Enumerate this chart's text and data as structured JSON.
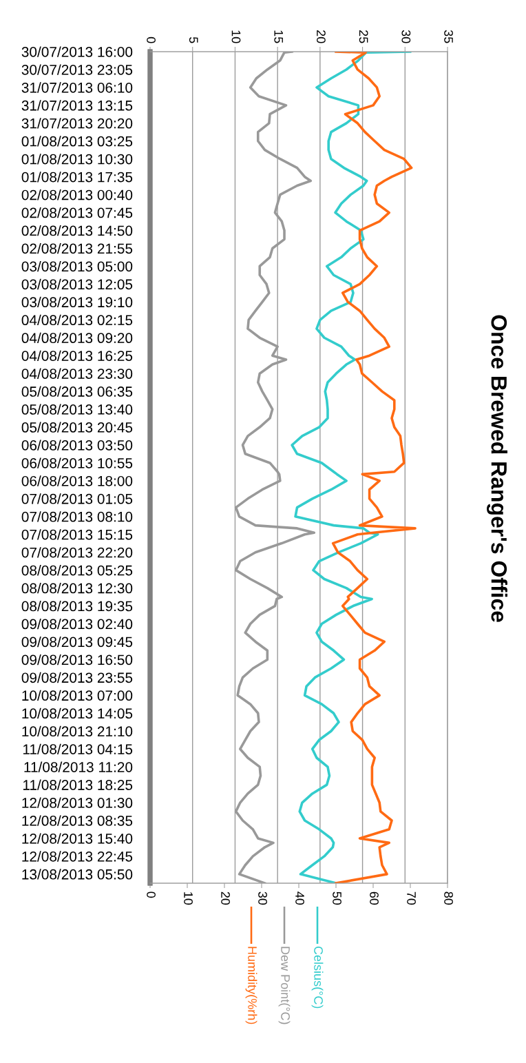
{
  "chart_data": {
    "type": "line",
    "orientation": "horizontal",
    "title": "Once Brewed Ranger's Office",
    "x": [
      "2013-07-30T16:00",
      "2013-07-30T16:20",
      "2013-07-30T19:30",
      "2013-07-30T23:05",
      "2013-07-31T02:35",
      "2013-07-31T06:10",
      "2013-07-31T09:40",
      "2013-07-31T13:15",
      "2013-07-31T16:45",
      "2013-07-31T20:20",
      "2013-07-31T23:50",
      "2013-08-01T03:25",
      "2013-08-01T06:55",
      "2013-08-01T10:30",
      "2013-08-01T14:00",
      "2013-08-01T17:35",
      "2013-08-01T19:10",
      "2013-08-01T21:05",
      "2013-08-02T00:40",
      "2013-08-02T04:10",
      "2013-08-02T07:45",
      "2013-08-02T11:15",
      "2013-08-02T14:50",
      "2013-08-02T18:20",
      "2013-08-02T21:55",
      "2013-08-03T01:25",
      "2013-08-03T05:00",
      "2013-08-03T08:30",
      "2013-08-03T12:05",
      "2013-08-03T15:35",
      "2013-08-03T19:10",
      "2013-08-03T22:40",
      "2013-08-04T02:15",
      "2013-08-04T05:45",
      "2013-08-04T09:20",
      "2013-08-04T12:50",
      "2013-08-04T16:25",
      "2013-08-04T18:00",
      "2013-08-04T19:55",
      "2013-08-04T23:30",
      "2013-08-05T03:00",
      "2013-08-05T06:35",
      "2013-08-05T10:05",
      "2013-08-05T13:40",
      "2013-08-05T17:10",
      "2013-08-05T20:45",
      "2013-08-06T00:15",
      "2013-08-06T03:50",
      "2013-08-06T07:20",
      "2013-08-06T10:55",
      "2013-08-06T14:25",
      "2013-08-06T15:25",
      "2013-08-06T18:00",
      "2013-08-06T21:30",
      "2013-08-07T01:05",
      "2013-08-07T04:35",
      "2013-08-07T08:10",
      "2013-08-07T11:40",
      "2013-08-07T12:50",
      "2013-08-07T14:35",
      "2013-08-07T15:15",
      "2013-08-07T18:45",
      "2013-08-07T22:20",
      "2013-08-08T01:50",
      "2013-08-08T05:25",
      "2013-08-08T08:55",
      "2013-08-08T12:30",
      "2013-08-08T16:00",
      "2013-08-08T16:50",
      "2013-08-08T19:35",
      "2013-08-08T23:05",
      "2013-08-09T02:40",
      "2013-08-09T06:10",
      "2013-08-09T09:45",
      "2013-08-09T13:15",
      "2013-08-09T16:50",
      "2013-08-09T20:20",
      "2013-08-09T23:55",
      "2013-08-10T03:25",
      "2013-08-10T07:00",
      "2013-08-10T10:30",
      "2013-08-10T14:05",
      "2013-08-10T17:35",
      "2013-08-10T21:10",
      "2013-08-11T00:40",
      "2013-08-11T04:15",
      "2013-08-11T07:45",
      "2013-08-11T11:20",
      "2013-08-11T14:50",
      "2013-08-11T18:25",
      "2013-08-11T21:55",
      "2013-08-12T01:30",
      "2013-08-12T05:00",
      "2013-08-12T08:35",
      "2013-08-12T12:05",
      "2013-08-12T15:40",
      "2013-08-12T17:25",
      "2013-08-12T19:10",
      "2013-08-12T22:45",
      "2013-08-13T02:15",
      "2013-08-13T05:50",
      "2013-08-13T09:25"
    ],
    "series": [
      {
        "name": "Celsius(°C)",
        "color": "#33cccc",
        "values": [
          30.6,
          25.4,
          24.5,
          23.1,
          21.3,
          19.6,
          21,
          24.5,
          24.5,
          23.1,
          21.3,
          21,
          21,
          21.3,
          22.8,
          24.8,
          25.5,
          25.1,
          23.6,
          22.5,
          21.8,
          23.1,
          24.8,
          25.1,
          23.6,
          22.5,
          20.8,
          21.6,
          23.6,
          23.9,
          23.6,
          21.3,
          20,
          19.6,
          20.5,
          22.5,
          23.4,
          24.1,
          23.1,
          21.9,
          20.9,
          20.6,
          20.8,
          20.9,
          20.9,
          19.9,
          17.9,
          16.7,
          17.3,
          20.2,
          21.6,
          22,
          23.1,
          21.3,
          19.1,
          17.3,
          17.1,
          21.6,
          25.1,
          25.8,
          26.8,
          24.8,
          22.2,
          19.9,
          19.2,
          20.5,
          23.1,
          24.8,
          26.1,
          23.9,
          21.9,
          20.2,
          19.6,
          20.2,
          21.6,
          22.8,
          21.3,
          19.4,
          18.4,
          18.2,
          20.2,
          21.6,
          22.2,
          21.3,
          19.9,
          19.1,
          19.6,
          20.9,
          21.1,
          20.8,
          19.1,
          17.9,
          17.6,
          18.2,
          19.9,
          21.3,
          21.6,
          21.5,
          20.5,
          19.1,
          17.7,
          21.9
        ]
      },
      {
        "name": "Dew Point(°C)",
        "color": "#999999",
        "values": [
          16.7,
          15.8,
          15.3,
          13.8,
          12.5,
          11.8,
          12.8,
          16,
          14.1,
          14,
          12.7,
          12.7,
          13.5,
          15.3,
          17.3,
          18.2,
          18.9,
          17.3,
          15.3,
          15,
          14.7,
          15.5,
          15.8,
          15.8,
          14.4,
          14.1,
          12.9,
          12.9,
          13.7,
          14,
          13.2,
          12.4,
          11.6,
          11.5,
          12.9,
          15,
          14.4,
          16,
          14.4,
          12.9,
          12.7,
          13.2,
          13.8,
          14.4,
          14.1,
          12.9,
          11.5,
          10.9,
          11.2,
          14.1,
          15,
          15.2,
          15.3,
          13.2,
          11.5,
          10.1,
          10.5,
          12.4,
          17.3,
          19.3,
          18.2,
          15.5,
          12.4,
          10.6,
          10.1,
          11.8,
          13.8,
          15.5,
          14.9,
          14.7,
          12.9,
          11.8,
          11.2,
          12.4,
          13.8,
          13.8,
          12.1,
          10.9,
          10.5,
          10.3,
          11.8,
          12.7,
          12.8,
          11.8,
          11.2,
          10.6,
          11.5,
          12.9,
          13,
          12.7,
          11.5,
          10.6,
          10.1,
          10.9,
          12.1,
          12.7,
          14.5,
          13.5,
          12.1,
          11.2,
          10.5,
          13.5
        ]
      },
      {
        "name": "Humidity(%rh)",
        "color": "#ff6a13",
        "axis": "x2",
        "values": [
          50,
          58,
          54.5,
          55.8,
          58.8,
          61,
          61.7,
          60,
          52.5,
          55.8,
          57.8,
          60.4,
          63,
          68.3,
          70.3,
          65,
          63,
          61,
          60.4,
          61,
          64.3,
          61.7,
          56.4,
          56.4,
          57,
          58.4,
          61,
          59,
          56.4,
          51.8,
          53.2,
          56.4,
          58.4,
          60.4,
          63,
          64.3,
          59,
          55.5,
          56.4,
          57,
          59.7,
          62.4,
          65.7,
          65.7,
          65,
          65.7,
          67.3,
          67.6,
          68,
          68.3,
          65.7,
          57.1,
          61.7,
          59,
          59,
          61,
          62.4,
          56.4,
          71.3,
          60,
          55.8,
          49.2,
          50.5,
          53.8,
          55.8,
          58.4,
          55.8,
          53.2,
          53.5,
          51.8,
          53.8,
          55.8,
          57.8,
          63,
          60.4,
          56.4,
          56.4,
          58.4,
          59,
          61.7,
          57.8,
          55.8,
          54.1,
          54.5,
          57.1,
          58.4,
          60.4,
          59.7,
          59.7,
          59.7,
          60.7,
          61.7,
          62,
          65,
          64.3,
          56.4,
          64.3,
          61.7,
          62,
          62.4,
          63.7,
          50
        ]
      }
    ],
    "xlim": [
      0,
      35
    ],
    "xticks": [
      0,
      5,
      10,
      15,
      20,
      25,
      30,
      35
    ],
    "x2lim": [
      0,
      80
    ],
    "x2ticks": [
      0,
      10,
      20,
      30,
      40,
      50,
      60,
      70,
      80
    ],
    "ylim": [
      "2013-08-13T09:25",
      "2013-07-30T16:00"
    ],
    "yticks": [
      {
        "value": "2013-07-30T16:00",
        "label": "30/07/2013 16:00"
      },
      {
        "value": "2013-07-30T23:05",
        "label": "30/07/2013 23:05"
      },
      {
        "value": "2013-07-31T06:10",
        "label": "31/07/2013 06:10"
      },
      {
        "value": "2013-07-31T13:15",
        "label": "31/07/2013 13:15"
      },
      {
        "value": "2013-07-31T20:20",
        "label": "31/07/2013 20:20"
      },
      {
        "value": "2013-08-01T03:25",
        "label": "01/08/2013 03:25"
      },
      {
        "value": "2013-08-01T10:30",
        "label": "01/08/2013 10:30"
      },
      {
        "value": "2013-08-01T17:35",
        "label": "01/08/2013 17:35"
      },
      {
        "value": "2013-08-02T00:40",
        "label": "02/08/2013 00:40"
      },
      {
        "value": "2013-08-02T07:45",
        "label": "02/08/2013 07:45"
      },
      {
        "value": "2013-08-02T14:50",
        "label": "02/08/2013 14:50"
      },
      {
        "value": "2013-08-02T21:55",
        "label": "02/08/2013 21:55"
      },
      {
        "value": "2013-08-03T05:00",
        "label": "03/08/2013 05:00"
      },
      {
        "value": "2013-08-03T12:05",
        "label": "03/08/2013 12:05"
      },
      {
        "value": "2013-08-03T19:10",
        "label": "03/08/2013 19:10"
      },
      {
        "value": "2013-08-04T02:15",
        "label": "04/08/2013 02:15"
      },
      {
        "value": "2013-08-04T09:20",
        "label": "04/08/2013 09:20"
      },
      {
        "value": "2013-08-04T16:25",
        "label": "04/08/2013 16:25"
      },
      {
        "value": "2013-08-04T23:30",
        "label": "04/08/2013 23:30"
      },
      {
        "value": "2013-08-05T06:35",
        "label": "05/08/2013 06:35"
      },
      {
        "value": "2013-08-05T13:40",
        "label": "05/08/2013 13:40"
      },
      {
        "value": "2013-08-05T20:45",
        "label": "05/08/2013 20:45"
      },
      {
        "value": "2013-08-06T03:50",
        "label": "06/08/2013 03:50"
      },
      {
        "value": "2013-08-06T10:55",
        "label": "06/08/2013 10:55"
      },
      {
        "value": "2013-08-06T18:00",
        "label": "06/08/2013 18:00"
      },
      {
        "value": "2013-08-07T01:05",
        "label": "07/08/2013 01:05"
      },
      {
        "value": "2013-08-07T08:10",
        "label": "07/08/2013 08:10"
      },
      {
        "value": "2013-08-07T15:15",
        "label": "07/08/2013 15:15"
      },
      {
        "value": "2013-08-07T22:20",
        "label": "07/08/2013 22:20"
      },
      {
        "value": "2013-08-08T05:25",
        "label": "08/08/2013 05:25"
      },
      {
        "value": "2013-08-08T12:30",
        "label": "08/08/2013 12:30"
      },
      {
        "value": "2013-08-08T19:35",
        "label": "08/08/2013 19:35"
      },
      {
        "value": "2013-08-09T02:40",
        "label": "09/08/2013 02:40"
      },
      {
        "value": "2013-08-09T09:45",
        "label": "09/08/2013 09:45"
      },
      {
        "value": "2013-08-09T16:50",
        "label": "09/08/2013 16:50"
      },
      {
        "value": "2013-08-09T23:55",
        "label": "09/08/2013 23:55"
      },
      {
        "value": "2013-08-10T07:00",
        "label": "10/08/2013 07:00"
      },
      {
        "value": "2013-08-10T14:05",
        "label": "10/08/2013 14:05"
      },
      {
        "value": "2013-08-10T21:10",
        "label": "10/08/2013 21:10"
      },
      {
        "value": "2013-08-11T04:15",
        "label": "11/08/2013 04:15"
      },
      {
        "value": "2013-08-11T11:20",
        "label": "11/08/2013 11:20"
      },
      {
        "value": "2013-08-11T18:25",
        "label": "11/08/2013 18:25"
      },
      {
        "value": "2013-08-12T01:30",
        "label": "12/08/2013 01:30"
      },
      {
        "value": "2013-08-12T08:35",
        "label": "12/08/2013 08:35"
      },
      {
        "value": "2013-08-12T15:40",
        "label": "12/08/2013 15:40"
      },
      {
        "value": "2013-08-12T22:45",
        "label": "12/08/2013 22:45"
      },
      {
        "value": "2013-08-13T05:50",
        "label": "13/08/2013 05:50"
      }
    ],
    "grid": "x",
    "legend": "bottom"
  }
}
